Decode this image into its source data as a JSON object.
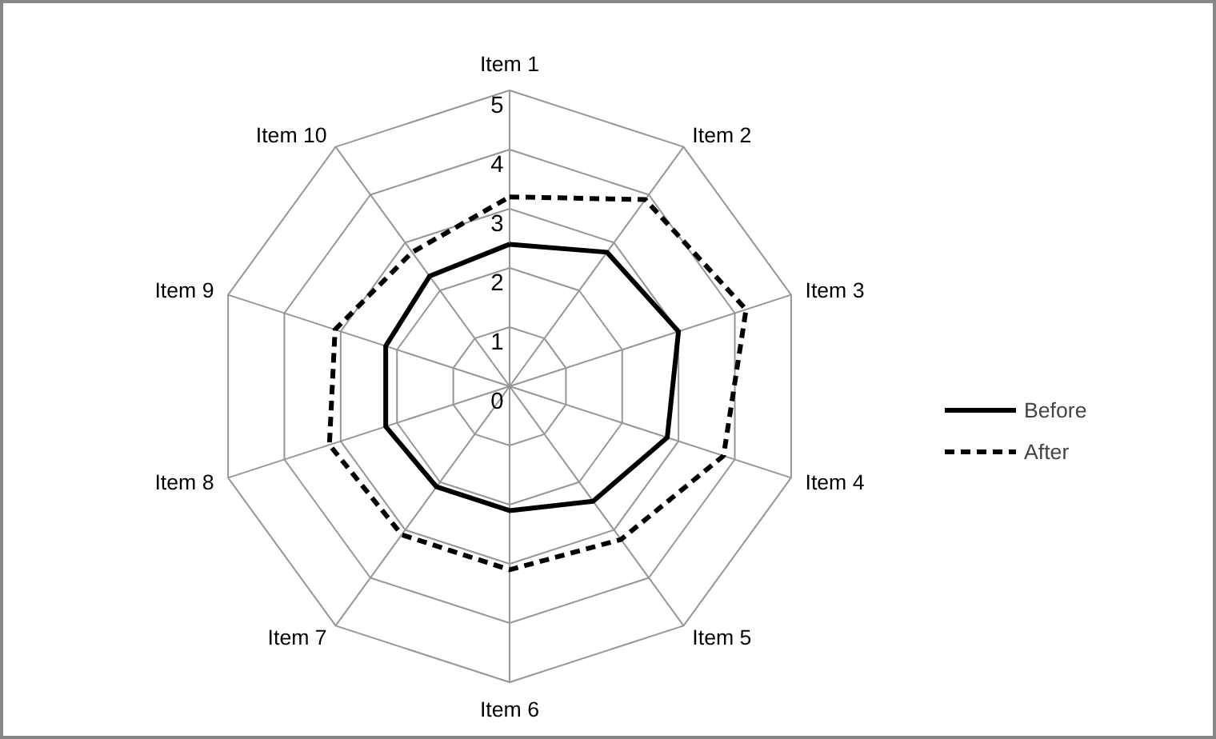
{
  "chart_data": {
    "type": "radar",
    "categories": [
      "Item 1",
      "Item 2",
      "Item 3",
      "Item 4",
      "Item 5",
      "Item 6",
      "Item 7",
      "Item 8",
      "Item 9",
      "Item 10"
    ],
    "series": [
      {
        "name": "Before",
        "color": "#000000",
        "line_style": "solid",
        "values": [
          2.4,
          2.8,
          3.0,
          2.8,
          2.4,
          2.1,
          2.1,
          2.2,
          2.2,
          2.3
        ]
      },
      {
        "name": "After",
        "color": "#000000",
        "line_style": "dashed",
        "values": [
          3.2,
          3.9,
          4.2,
          3.8,
          3.2,
          3.1,
          3.1,
          3.2,
          3.1,
          2.8
        ]
      }
    ],
    "ylim": [
      0,
      5
    ],
    "yticks": [
      0,
      1,
      2,
      3,
      4,
      5
    ],
    "grid": true,
    "legend": "right",
    "marker": "none"
  }
}
